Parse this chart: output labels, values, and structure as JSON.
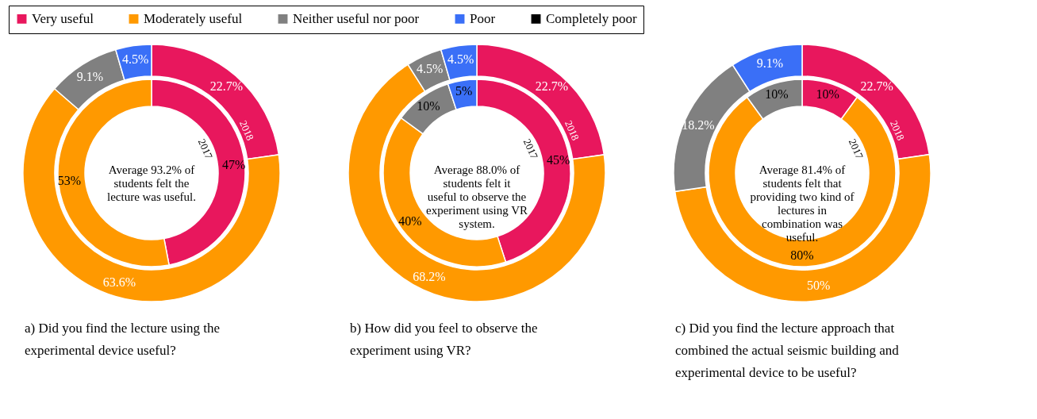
{
  "chart_data": [
    {
      "type": "donut",
      "legend": "top",
      "categories": [
        "Very useful",
        "Moderately useful",
        "Neither useful nor poor",
        "Poor",
        "Completely poor"
      ],
      "colors": [
        "#e8175d",
        "#ff9900",
        "#808080",
        "#3a6ff7",
        "#000000"
      ],
      "series": [
        {
          "name": "2018",
          "values": [
            22.7,
            63.6,
            9.1,
            4.5,
            null
          ],
          "value_labels": [
            "22.7%",
            "63.6%",
            "9.1%",
            "4.5%",
            null
          ]
        },
        {
          "name": "2017",
          "values": [
            47,
            53,
            null,
            null,
            null
          ],
          "value_labels": [
            "47%",
            "53%",
            null,
            null,
            null
          ]
        }
      ],
      "annotations": [
        "Average 93.2% of students felt the lecture was useful.",
        "a) Did you find the lecture using the experimental device useful?"
      ]
    },
    {
      "type": "donut",
      "categories": [
        null,
        null,
        null,
        null,
        null
      ],
      "colors": [
        "#e8175d",
        "#ff9900",
        "#808080",
        "#3a6ff7",
        "#000000"
      ],
      "series": [
        {
          "name": "2018",
          "values": [
            22.7,
            68.2,
            4.5,
            4.5,
            null
          ],
          "value_labels": [
            "22.7%",
            "68.2%",
            "4.5%",
            "4.5%",
            null
          ]
        },
        {
          "name": "2017",
          "values": [
            45,
            40,
            10,
            5,
            null
          ],
          "value_labels": [
            "45%",
            "40%",
            "10%",
            "5%",
            null
          ]
        }
      ],
      "annotations": [
        "Average 88.0% of students felt it useful to observe the experiment using VR system.",
        "b) How did you feel to observe the experiment using VR?"
      ]
    },
    {
      "type": "donut",
      "categories": [
        null,
        null,
        null,
        null,
        null
      ],
      "colors": [
        "#e8175d",
        "#ff9900",
        "#808080",
        "#3a6ff7",
        "#000000"
      ],
      "series": [
        {
          "name": "2018",
          "values": [
            22.7,
            50,
            18.2,
            9.1,
            null
          ],
          "value_labels": [
            "22.7%",
            "50%",
            "18.2%",
            "9.1%",
            null
          ]
        },
        {
          "name": "2017",
          "values": [
            10,
            80,
            10,
            null,
            null
          ],
          "value_labels": [
            "10%",
            "80%",
            "10%",
            null,
            null
          ]
        }
      ],
      "annotations": [
        "Average 81.4% of students felt that providing two kind of lectures in combination was useful.",
        "c) Did you find the lecture approach that combined the actual seismic building and experimental device to be useful?"
      ]
    }
  ]
}
